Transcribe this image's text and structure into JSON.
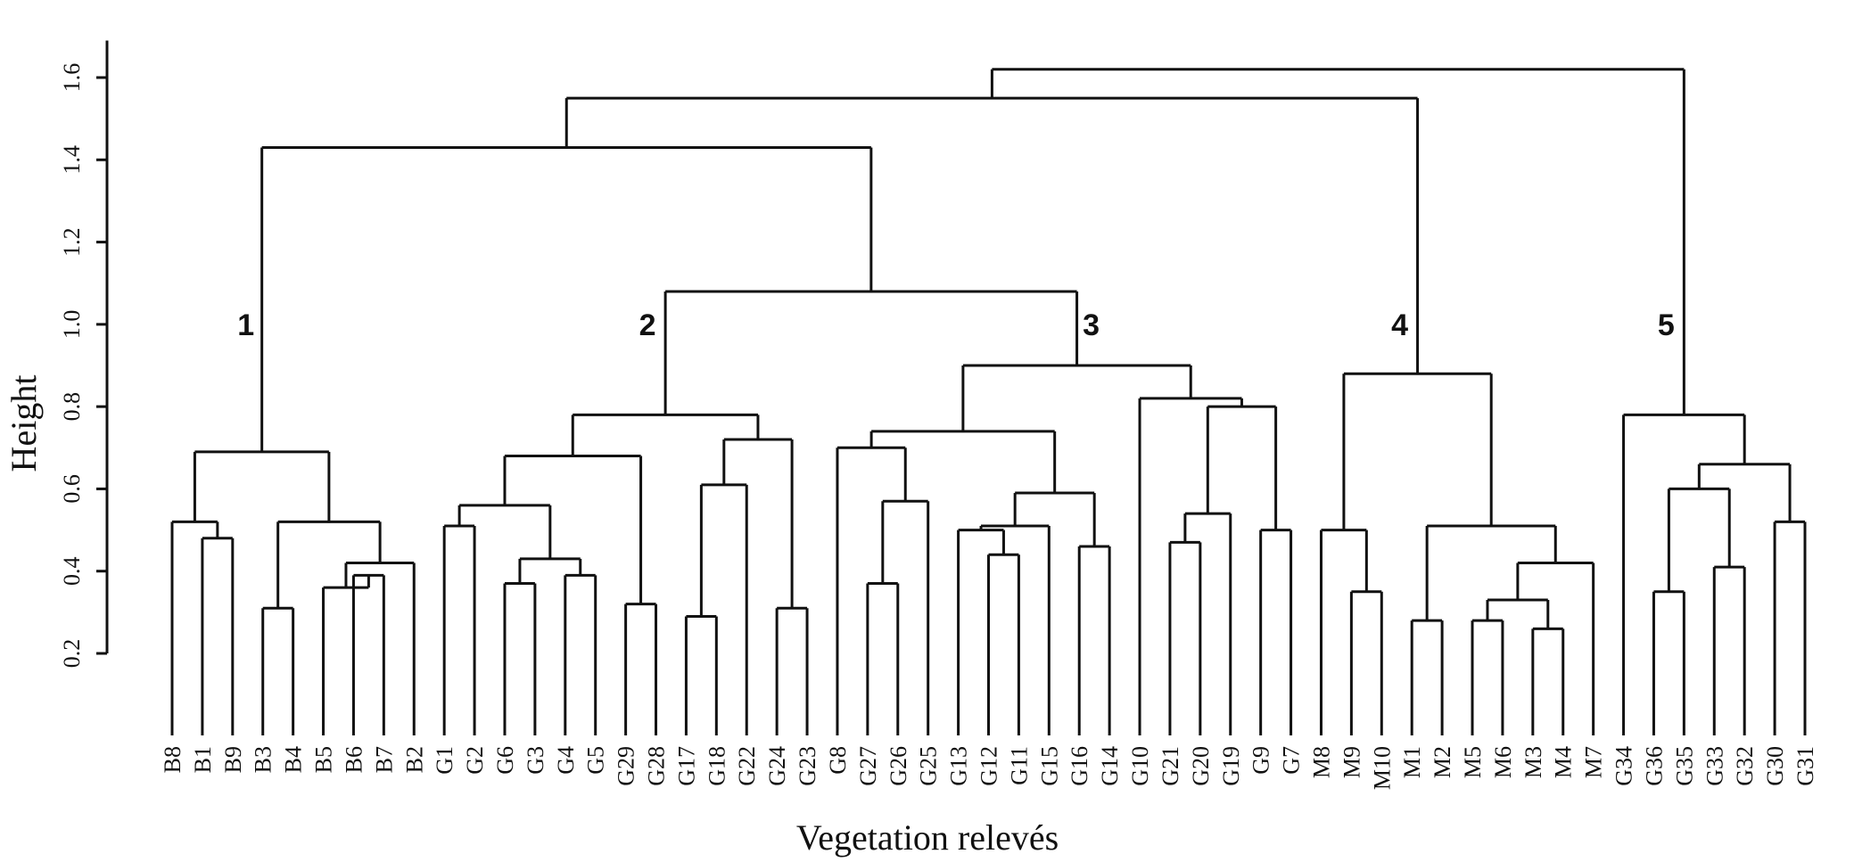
{
  "chart_data": {
    "type": "dendrogram",
    "xlabel": "Vegetation relevés",
    "ylabel": "Height",
    "ylim": [
      0.2,
      1.6
    ],
    "yticks": [
      "0.2",
      "0.4",
      "0.6",
      "0.8",
      "1.0",
      "1.2",
      "1.4",
      "1.6"
    ],
    "leaves": [
      "B8",
      "B1",
      "B9",
      "B3",
      "B4",
      "B5",
      "B6",
      "B7",
      "B2",
      "G1",
      "G2",
      "G6",
      "G3",
      "G4",
      "G5",
      "G29",
      "G28",
      "G17",
      "G18",
      "G22",
      "G24",
      "G23",
      "G8",
      "G27",
      "G26",
      "G25",
      "G13",
      "G12",
      "G11",
      "G15",
      "G16",
      "G14",
      "G10",
      "G21",
      "G20",
      "G19",
      "G9",
      "G7",
      "M8",
      "M9",
      "M10",
      "M1",
      "M2",
      "M5",
      "M6",
      "M3",
      "M4",
      "M7",
      "G34",
      "G36",
      "G35",
      "G33",
      "G32",
      "G30",
      "G31"
    ],
    "merges": [
      {
        "id": "n1",
        "children": [
          "B1",
          "B9"
        ],
        "height": 0.48
      },
      {
        "id": "n2",
        "children": [
          "B8",
          "n1"
        ],
        "height": 0.52
      },
      {
        "id": "n3",
        "children": [
          "B6",
          "B7"
        ],
        "height": 0.39
      },
      {
        "id": "n4",
        "children": [
          "B5",
          "n3"
        ],
        "height": 0.36
      },
      {
        "id": "n5",
        "children": [
          "n4",
          "B2"
        ],
        "height": 0.42
      },
      {
        "id": "n6",
        "children": [
          "B3",
          "B4"
        ],
        "height": 0.31
      },
      {
        "id": "n7",
        "children": [
          "n6",
          "n5"
        ],
        "height": 0.52
      },
      {
        "id": "n8",
        "children": [
          "n2",
          "n7"
        ],
        "height": 0.69
      },
      {
        "id": "n9",
        "children": [
          "G1",
          "G2"
        ],
        "height": 0.51
      },
      {
        "id": "n10",
        "children": [
          "G6",
          "G3"
        ],
        "height": 0.37
      },
      {
        "id": "n11",
        "children": [
          "G4",
          "G5"
        ],
        "height": 0.39
      },
      {
        "id": "n12",
        "children": [
          "n10",
          "n11"
        ],
        "height": 0.43
      },
      {
        "id": "n13",
        "children": [
          "n9",
          "n12"
        ],
        "height": 0.56
      },
      {
        "id": "n14",
        "children": [
          "G29",
          "G28"
        ],
        "height": 0.32
      },
      {
        "id": "n15",
        "children": [
          "n13",
          "n14"
        ],
        "height": 0.68
      },
      {
        "id": "n16",
        "children": [
          "G17",
          "G18"
        ],
        "height": 0.29
      },
      {
        "id": "n17",
        "children": [
          "n16",
          "G22"
        ],
        "height": 0.61
      },
      {
        "id": "n18",
        "children": [
          "G24",
          "G23"
        ],
        "height": 0.31
      },
      {
        "id": "n19",
        "children": [
          "n17",
          "n18"
        ],
        "height": 0.72
      },
      {
        "id": "n20",
        "children": [
          "n15",
          "n19"
        ],
        "height": 0.78
      },
      {
        "id": "n21",
        "children": [
          "G27",
          "G26"
        ],
        "height": 0.37
      },
      {
        "id": "n22",
        "children": [
          "n21",
          "G25"
        ],
        "height": 0.57
      },
      {
        "id": "n23",
        "children": [
          "G8",
          "n22"
        ],
        "height": 0.7
      },
      {
        "id": "n24",
        "children": [
          "G12",
          "G11"
        ],
        "height": 0.44
      },
      {
        "id": "n25",
        "children": [
          "G13",
          "n24"
        ],
        "height": 0.5
      },
      {
        "id": "n26",
        "children": [
          "n25",
          "G15"
        ],
        "height": 0.51
      },
      {
        "id": "n27",
        "children": [
          "G16",
          "G14"
        ],
        "height": 0.46
      },
      {
        "id": "n28",
        "children": [
          "n26",
          "n27"
        ],
        "height": 0.59
      },
      {
        "id": "n29",
        "children": [
          "n23",
          "n28"
        ],
        "height": 0.74
      },
      {
        "id": "n30",
        "children": [
          "G21",
          "G20"
        ],
        "height": 0.47
      },
      {
        "id": "n31",
        "children": [
          "n30",
          "G19"
        ],
        "height": 0.54
      },
      {
        "id": "n32",
        "children": [
          "G9",
          "G7"
        ],
        "height": 0.5
      },
      {
        "id": "n33",
        "children": [
          "n31",
          "n32"
        ],
        "height": 0.8
      },
      {
        "id": "n34",
        "children": [
          "G10",
          "n33"
        ],
        "height": 0.82
      },
      {
        "id": "n35",
        "children": [
          "n29",
          "n34"
        ],
        "height": 0.9
      },
      {
        "id": "n36",
        "children": [
          "n20",
          "n35"
        ],
        "height": 1.08
      },
      {
        "id": "n37",
        "children": [
          "n8",
          "n36"
        ],
        "height": 1.43
      },
      {
        "id": "n38",
        "children": [
          "M9",
          "M10"
        ],
        "height": 0.35
      },
      {
        "id": "n39",
        "children": [
          "M8",
          "n38"
        ],
        "height": 0.5
      },
      {
        "id": "n40",
        "children": [
          "M1",
          "M2"
        ],
        "height": 0.28
      },
      {
        "id": "n41",
        "children": [
          "M5",
          "M6"
        ],
        "height": 0.28
      },
      {
        "id": "n42",
        "children": [
          "M3",
          "M4"
        ],
        "height": 0.26
      },
      {
        "id": "n43",
        "children": [
          "n41",
          "n42"
        ],
        "height": 0.33
      },
      {
        "id": "n44",
        "children": [
          "n43",
          "M7"
        ],
        "height": 0.42
      },
      {
        "id": "n45",
        "children": [
          "n40",
          "n44"
        ],
        "height": 0.51
      },
      {
        "id": "n46",
        "children": [
          "n39",
          "n45"
        ],
        "height": 0.88
      },
      {
        "id": "n47",
        "children": [
          "n37",
          "n46"
        ],
        "height": 1.55
      },
      {
        "id": "n48",
        "children": [
          "G36",
          "G35"
        ],
        "height": 0.35
      },
      {
        "id": "n49",
        "children": [
          "G33",
          "G32"
        ],
        "height": 0.41
      },
      {
        "id": "n50",
        "children": [
          "n48",
          "n49"
        ],
        "height": 0.6
      },
      {
        "id": "n51",
        "children": [
          "G30",
          "G31"
        ],
        "height": 0.52
      },
      {
        "id": "n52",
        "children": [
          "n50",
          "n51"
        ],
        "height": 0.66
      },
      {
        "id": "n53",
        "children": [
          "G34",
          "n52"
        ],
        "height": 0.78
      },
      {
        "id": "n54",
        "children": [
          "n47",
          "n53"
        ],
        "height": 1.62
      }
    ],
    "cluster_labels": [
      {
        "text": "1",
        "node": "n8"
      },
      {
        "text": "2",
        "node": "n20"
      },
      {
        "text": "3",
        "node": "n35"
      },
      {
        "text": "4",
        "node": "n46"
      },
      {
        "text": "5",
        "node": "n53"
      }
    ]
  }
}
